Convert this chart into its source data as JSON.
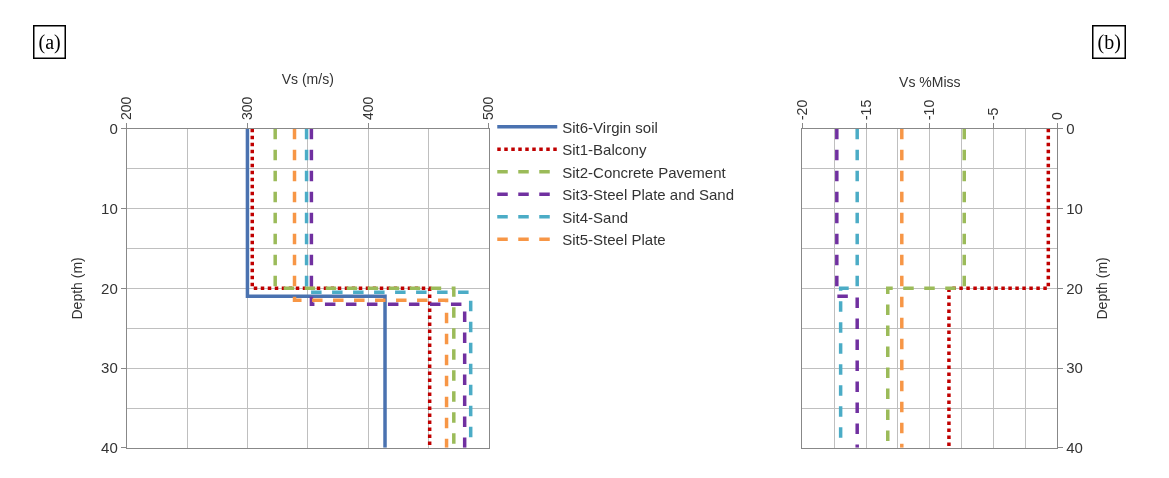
{
  "chart_data": [
    {
      "type": "line",
      "xlabel": "Vs (m/s)",
      "ylabel": "Depth (m)",
      "xlim": [
        200,
        500
      ],
      "xticks": [
        200,
        300,
        400,
        500
      ],
      "ylim": [
        40,
        0
      ],
      "yticks": [
        0,
        10,
        20,
        30,
        40
      ],
      "grid": true,
      "legend": "right",
      "annotations": [
        "(a)"
      ],
      "series": [
        {
          "name": "Sit6-Virgin soil",
          "color": "#4a72b0",
          "line_style": "solid",
          "x": [
            300,
            300,
            414,
            414
          ],
          "values": [
            0,
            21,
            21,
            40
          ]
        },
        {
          "name": "Sit1-Balcony",
          "color": "#c00000",
          "line_style": "dotted",
          "x": [
            304,
            304,
            451,
            451
          ],
          "values": [
            0,
            20,
            20,
            40
          ]
        },
        {
          "name": "Sit2-Concrete Pavement",
          "color": "#9bbb59",
          "line_style": "dashed",
          "x": [
            323,
            323,
            471,
            471
          ],
          "values": [
            0,
            20,
            20,
            40
          ]
        },
        {
          "name": "Sit3-Steel Plate and Sand",
          "color": "#7030a0",
          "line_style": "dashed",
          "x": [
            353,
            353,
            480,
            480
          ],
          "values": [
            0,
            22,
            22,
            40
          ]
        },
        {
          "name": "Sit4-Sand",
          "color": "#4bacc6",
          "line_style": "dashed",
          "x": [
            349,
            349,
            485,
            485
          ],
          "values": [
            0,
            20.5,
            20.5,
            40
          ]
        },
        {
          "name": "Sit5-Steel Plate",
          "color": "#f79646",
          "line_style": "dashed",
          "x": [
            339,
            339,
            465,
            465
          ],
          "values": [
            0,
            21.5,
            21.5,
            40
          ]
        }
      ]
    },
    {
      "type": "line",
      "xlabel": "Vs %Miss",
      "ylabel": "Depth (m)",
      "xlim": [
        -20,
        0
      ],
      "xticks": [
        -20,
        -15,
        -10,
        -5,
        0
      ],
      "ylim": [
        40,
        0
      ],
      "yticks": [
        0,
        10,
        20,
        30,
        40
      ],
      "grid": true,
      "annotations": [
        "(b)"
      ],
      "series": [
        {
          "color": "#c00000",
          "line_style": "dotted",
          "x": [
            -0.7,
            -0.7,
            -8.5,
            -8.5
          ],
          "values": [
            0,
            20,
            20,
            40
          ]
        },
        {
          "color": "#9bbb59",
          "line_style": "dashed",
          "x": [
            -7.3,
            -7.3,
            -13.3,
            -13.3
          ],
          "values": [
            0,
            20,
            20,
            40
          ]
        },
        {
          "color": "#7030a0",
          "line_style": "dashed",
          "x": [
            -17.3,
            -17.3,
            -15.7,
            -15.7
          ],
          "values": [
            0,
            21,
            21,
            40
          ]
        },
        {
          "color": "#4bacc6",
          "line_style": "dashed",
          "x": [
            -15.7,
            -15.7,
            -17.0,
            -17.0
          ],
          "values": [
            0,
            20,
            20,
            40
          ]
        },
        {
          "color": "#f79646",
          "line_style": "dashed",
          "x": [
            -12.2,
            -12.2,
            -12.2
          ],
          "values": [
            0,
            20,
            40
          ]
        }
      ]
    }
  ]
}
